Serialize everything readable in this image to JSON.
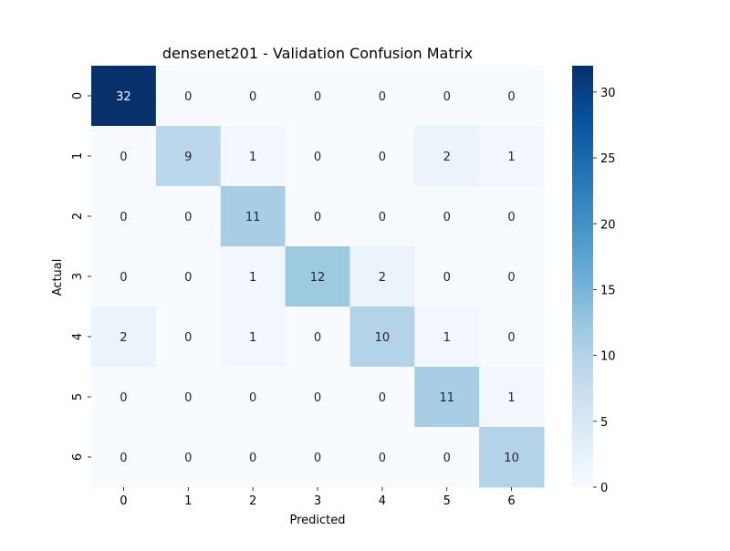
{
  "chart_data": {
    "type": "heatmap",
    "title": "densenet201 - Validation Confusion Matrix",
    "xlabel": "Predicted",
    "ylabel": "Actual",
    "x_categories": [
      "0",
      "1",
      "2",
      "3",
      "4",
      "5",
      "6"
    ],
    "y_categories": [
      "0",
      "1",
      "2",
      "3",
      "4",
      "5",
      "6"
    ],
    "values": [
      [
        32,
        0,
        0,
        0,
        0,
        0,
        0
      ],
      [
        0,
        9,
        1,
        0,
        0,
        2,
        1
      ],
      [
        0,
        0,
        11,
        0,
        0,
        0,
        0
      ],
      [
        0,
        0,
        1,
        12,
        2,
        0,
        0
      ],
      [
        2,
        0,
        1,
        0,
        10,
        1,
        0
      ],
      [
        0,
        0,
        0,
        0,
        0,
        11,
        1
      ],
      [
        0,
        0,
        0,
        0,
        0,
        0,
        10
      ]
    ],
    "colorbar": {
      "colormap": "Blues",
      "range": [
        0,
        32
      ],
      "ticks": [
        0,
        5,
        10,
        15,
        20,
        25,
        30
      ]
    },
    "annotations": "cell values shown",
    "grid": false
  }
}
